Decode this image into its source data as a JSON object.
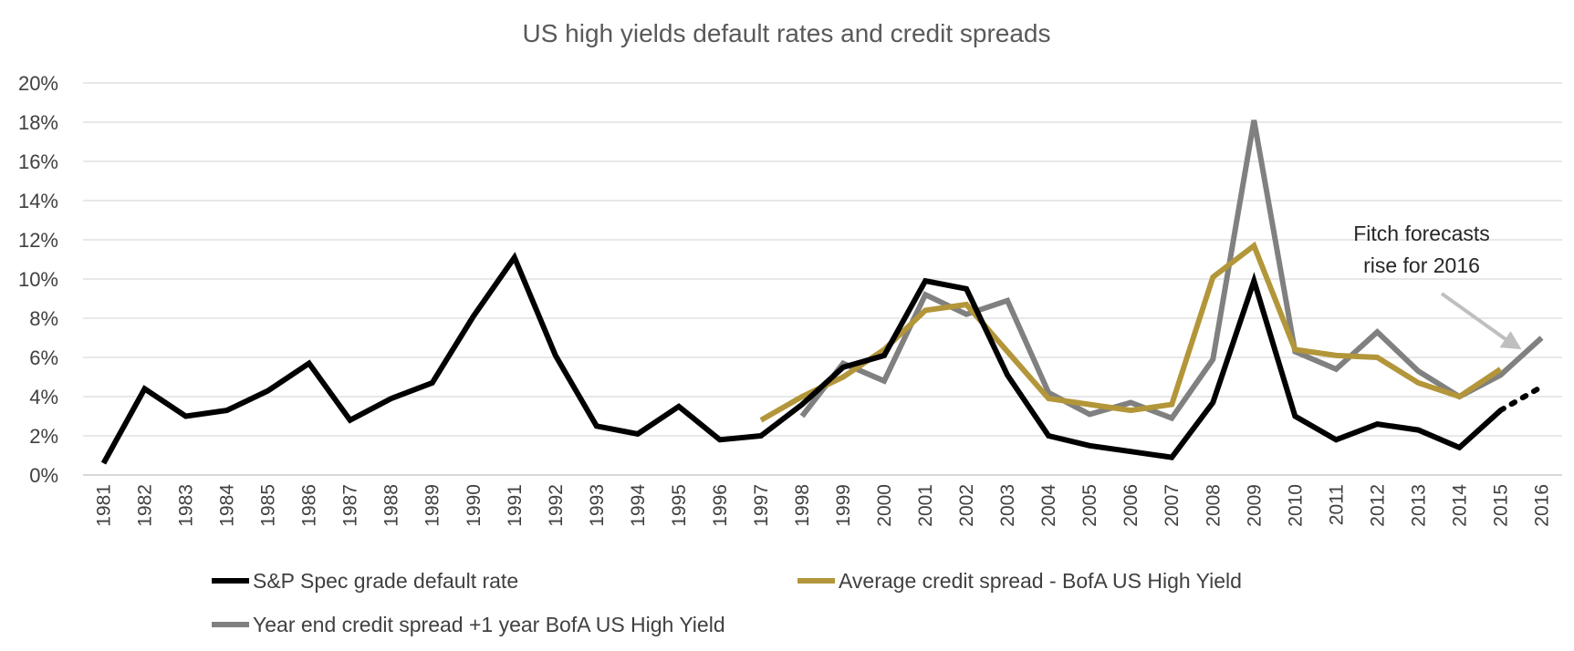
{
  "chart_data": {
    "type": "line",
    "title": "US high yields default rates and credit spreads",
    "xlabel": "",
    "ylabel": "",
    "ylim": [
      0,
      0.2
    ],
    "y_ticks": [
      "0%",
      "2%",
      "4%",
      "6%",
      "8%",
      "10%",
      "12%",
      "14%",
      "16%",
      "18%",
      "20%"
    ],
    "grid": "horizontal",
    "legend_position": "bottom",
    "categories": [
      "1981",
      "1982",
      "1983",
      "1984",
      "1985",
      "1986",
      "1987",
      "1988",
      "1989",
      "1990",
      "1991",
      "1992",
      "1993",
      "1994",
      "1995",
      "1996",
      "1997",
      "1998",
      "1999",
      "2000",
      "2001",
      "2002",
      "2003",
      "2004",
      "2005",
      "2006",
      "2007",
      "2008",
      "2009",
      "2010",
      "2011",
      "2012",
      "2013",
      "2014",
      "2015",
      "2016"
    ],
    "series": [
      {
        "name": "S&P Spec grade default rate",
        "color": "#000000",
        "values": [
          0.006,
          0.044,
          0.03,
          0.033,
          0.043,
          0.057,
          0.028,
          0.039,
          0.047,
          0.081,
          0.111,
          0.061,
          0.025,
          0.021,
          0.035,
          0.018,
          0.02,
          0.036,
          0.055,
          0.061,
          0.099,
          0.095,
          0.051,
          0.02,
          0.015,
          0.012,
          0.009,
          0.037,
          0.099,
          0.03,
          0.018,
          0.026,
          0.023,
          0.014,
          0.033,
          null
        ],
        "forecast": {
          "from": "2015",
          "to": "2016",
          "values": [
            0.033,
            0.045
          ],
          "style": "dotted"
        }
      },
      {
        "name": "Average credit spread - BofA US High Yield",
        "color": "#b3963a",
        "values": [
          null,
          null,
          null,
          null,
          null,
          null,
          null,
          null,
          null,
          null,
          null,
          null,
          null,
          null,
          null,
          null,
          0.028,
          0.04,
          0.05,
          0.064,
          0.084,
          0.087,
          0.063,
          0.039,
          0.036,
          0.033,
          0.036,
          0.101,
          0.117,
          0.064,
          0.061,
          0.06,
          0.047,
          0.04,
          0.054,
          null
        ]
      },
      {
        "name": "Year end credit spread +1 year BofA US High Yield",
        "color": "#808080",
        "values": [
          null,
          null,
          null,
          null,
          null,
          null,
          null,
          null,
          null,
          null,
          null,
          null,
          null,
          null,
          null,
          null,
          null,
          0.03,
          0.057,
          0.048,
          0.092,
          0.082,
          0.089,
          0.042,
          0.031,
          0.037,
          0.029,
          0.059,
          0.181,
          0.063,
          0.054,
          0.073,
          0.053,
          0.04,
          0.051,
          0.07
        ]
      }
    ],
    "annotation": {
      "lines": [
        "Fitch forecasts",
        "rise for 2016"
      ],
      "arrow_target": "2016"
    }
  }
}
